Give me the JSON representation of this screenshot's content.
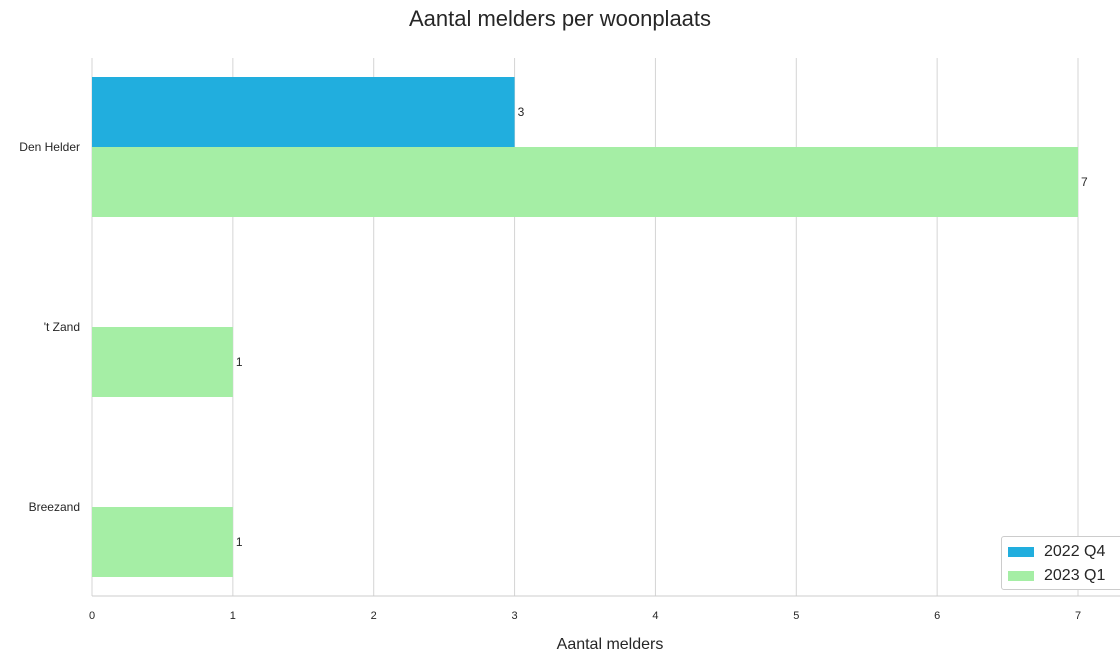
{
  "chart_data": {
    "type": "bar",
    "orientation": "horizontal",
    "title": "Aantal melders per woonplaats",
    "xlabel": "Aantal melders",
    "ylabel": "",
    "categories": [
      "Den Helder",
      "'t Zand",
      "Breezand"
    ],
    "series": [
      {
        "name": "2022 Q4",
        "color": "#21aede",
        "values": [
          3,
          null,
          null
        ]
      },
      {
        "name": "2023 Q1",
        "color": "#a5eea5",
        "values": [
          7,
          1,
          1
        ]
      }
    ],
    "xlim": [
      0,
      7
    ],
    "xticks": [
      0,
      1,
      2,
      3,
      4,
      5,
      6,
      7
    ],
    "grid": "vertical",
    "legend_position": "bottom-right",
    "data_labels": true
  }
}
